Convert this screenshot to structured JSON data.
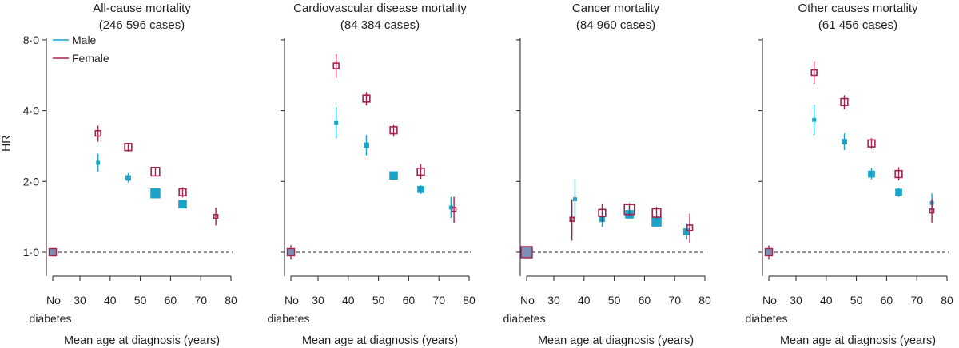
{
  "colors": {
    "male": "#1aa3c7",
    "female": "#a3224f",
    "axis": "#231f20"
  },
  "legend": {
    "male": "Male",
    "female": "Female"
  },
  "chart_data": [
    {
      "type": "scatter",
      "title": "All-cause mortality",
      "subtitle": "(246 596 cases)",
      "xlabel": "Mean age at diagnosis (years)",
      "ylabel": "HR",
      "yscale": "log2",
      "yticks": [
        1.0,
        2.0,
        4.0,
        8.0
      ],
      "ytick_labels": [
        "1·0",
        "2·0",
        "4·0",
        "8·0"
      ],
      "xticks": [
        30,
        40,
        50,
        60,
        70,
        80
      ],
      "no_diabetes_label": [
        "No",
        "diabetes"
      ],
      "reference_line": 1.0,
      "ref_point": {
        "hr": 1.0,
        "lo": 0.96,
        "hi": 1.04
      },
      "series": [
        {
          "name": "Male",
          "points": [
            {
              "age": 36,
              "hr": 2.4,
              "lo": 2.2,
              "hi": 2.62,
              "weight": 1
            },
            {
              "age": 46,
              "hr": 2.07,
              "lo": 1.98,
              "hi": 2.17,
              "weight": 2
            },
            {
              "age": 55,
              "hr": 1.78,
              "lo": 1.74,
              "hi": 1.82,
              "weight": 5
            },
            {
              "age": 64,
              "hr": 1.6,
              "lo": 1.57,
              "hi": 1.63,
              "weight": 4
            }
          ]
        },
        {
          "name": "Female",
          "points": [
            {
              "age": 36,
              "hr": 3.2,
              "lo": 2.95,
              "hi": 3.45,
              "weight": 2
            },
            {
              "age": 46,
              "hr": 2.8,
              "lo": 2.68,
              "hi": 2.92,
              "weight": 3
            },
            {
              "age": 55,
              "hr": 2.2,
              "lo": 2.12,
              "hi": 2.28,
              "weight": 4
            },
            {
              "age": 64,
              "hr": 1.8,
              "lo": 1.71,
              "hi": 1.89,
              "weight": 3
            },
            {
              "age": 75,
              "hr": 1.42,
              "lo": 1.3,
              "hi": 1.55,
              "weight": 1
            }
          ]
        }
      ]
    },
    {
      "type": "scatter",
      "title": "Cardiovascular disease mortality",
      "subtitle": "(84 384 cases)",
      "xlabel": "Mean age at diagnosis (years)",
      "ylabel": "HR",
      "yscale": "log2",
      "yticks": [
        1.0,
        2.0,
        4.0,
        8.0
      ],
      "ytick_labels": [
        "1·0",
        "2·0",
        "4·0",
        "8·0"
      ],
      "xticks": [
        30,
        40,
        50,
        60,
        70,
        80
      ],
      "no_diabetes_label": [
        "No",
        "diabetes"
      ],
      "reference_line": 1.0,
      "ref_point": {
        "hr": 1.0,
        "lo": 0.93,
        "hi": 1.07
      },
      "series": [
        {
          "name": "Male",
          "points": [
            {
              "age": 36,
              "hr": 3.55,
              "lo": 3.05,
              "hi": 4.15,
              "weight": 1
            },
            {
              "age": 46,
              "hr": 2.85,
              "lo": 2.58,
              "hi": 3.15,
              "weight": 2
            },
            {
              "age": 55,
              "hr": 2.12,
              "lo": 2.03,
              "hi": 2.21,
              "weight": 4
            },
            {
              "age": 64,
              "hr": 1.85,
              "lo": 1.77,
              "hi": 1.93,
              "weight": 3
            },
            {
              "age": 74,
              "hr": 1.55,
              "lo": 1.4,
              "hi": 1.72,
              "weight": 1
            }
          ]
        },
        {
          "name": "Female",
          "points": [
            {
              "age": 36,
              "hr": 6.2,
              "lo": 5.5,
              "hi": 6.95,
              "weight": 2
            },
            {
              "age": 46,
              "hr": 4.5,
              "lo": 4.2,
              "hi": 4.8,
              "weight": 3
            },
            {
              "age": 55,
              "hr": 3.3,
              "lo": 3.1,
              "hi": 3.5,
              "weight": 3
            },
            {
              "age": 64,
              "hr": 2.2,
              "lo": 2.05,
              "hi": 2.37,
              "weight": 3
            },
            {
              "age": 75,
              "hr": 1.52,
              "lo": 1.33,
              "hi": 1.72,
              "weight": 1
            }
          ]
        }
      ]
    },
    {
      "type": "scatter",
      "title": "Cancer mortality",
      "subtitle": "(84 960 cases)",
      "xlabel": "Mean age at diagnosis (years)",
      "ylabel": "HR",
      "yscale": "log2",
      "yticks": [
        1.0,
        2.0,
        4.0,
        8.0
      ],
      "ytick_labels": [
        "1·0",
        "2·0",
        "4·0",
        "8·0"
      ],
      "xticks": [
        30,
        40,
        50,
        60,
        70,
        80
      ],
      "no_diabetes_label": [
        "No",
        "diabetes"
      ],
      "reference_line": 1.0,
      "ref_point": {
        "hr": 1.0,
        "lo": 0.95,
        "hi": 1.05
      },
      "series": [
        {
          "name": "Male",
          "points": [
            {
              "age": 37,
              "hr": 1.68,
              "lo": 1.38,
              "hi": 2.05,
              "weight": 1
            },
            {
              "age": 46,
              "hr": 1.38,
              "lo": 1.28,
              "hi": 1.48,
              "weight": 2
            },
            {
              "age": 55,
              "hr": 1.45,
              "lo": 1.39,
              "hi": 1.52,
              "weight": 4
            },
            {
              "age": 64,
              "hr": 1.35,
              "lo": 1.3,
              "hi": 1.4,
              "weight": 5
            },
            {
              "age": 74,
              "hr": 1.22,
              "lo": 1.13,
              "hi": 1.32,
              "weight": 3
            }
          ]
        },
        {
          "name": "Female",
          "points": [
            {
              "age": 36,
              "hr": 1.38,
              "lo": 1.12,
              "hi": 1.68,
              "weight": 1
            },
            {
              "age": 46,
              "hr": 1.47,
              "lo": 1.35,
              "hi": 1.6,
              "weight": 3
            },
            {
              "age": 55,
              "hr": 1.52,
              "lo": 1.43,
              "hi": 1.62,
              "weight": 5
            },
            {
              "age": 64,
              "hr": 1.47,
              "lo": 1.39,
              "hi": 1.56,
              "weight": 4
            },
            {
              "age": 75,
              "hr": 1.27,
              "lo": 1.1,
              "hi": 1.46,
              "weight": 2
            }
          ]
        }
      ]
    },
    {
      "type": "scatter",
      "title": "Other causes mortality",
      "subtitle": "(61 456 cases)",
      "xlabel": "Mean age at diagnosis (years)",
      "ylabel": "HR",
      "yscale": "log2",
      "yticks": [
        1.0,
        2.0,
        4.0,
        8.0
      ],
      "ytick_labels": [
        "1·0",
        "2·0",
        "4·0",
        "8·0"
      ],
      "xticks": [
        30,
        40,
        50,
        60,
        70,
        80
      ],
      "no_diabetes_label": [
        "No",
        "diabetes"
      ],
      "reference_line": 1.0,
      "ref_point": {
        "hr": 1.0,
        "lo": 0.93,
        "hi": 1.07
      },
      "series": [
        {
          "name": "Male",
          "points": [
            {
              "age": 36,
              "hr": 3.65,
              "lo": 3.15,
              "hi": 4.25,
              "weight": 1
            },
            {
              "age": 46,
              "hr": 2.95,
              "lo": 2.72,
              "hi": 3.2,
              "weight": 2
            },
            {
              "age": 55,
              "hr": 2.15,
              "lo": 2.04,
              "hi": 2.27,
              "weight": 3
            },
            {
              "age": 64,
              "hr": 1.8,
              "lo": 1.72,
              "hi": 1.88,
              "weight": 3
            },
            {
              "age": 75,
              "hr": 1.62,
              "lo": 1.48,
              "hi": 1.78,
              "weight": 1
            }
          ]
        },
        {
          "name": "Female",
          "points": [
            {
              "age": 36,
              "hr": 5.8,
              "lo": 5.2,
              "hi": 6.45,
              "weight": 2
            },
            {
              "age": 46,
              "hr": 4.35,
              "lo": 4.05,
              "hi": 4.65,
              "weight": 3
            },
            {
              "age": 55,
              "hr": 2.9,
              "lo": 2.75,
              "hi": 3.05,
              "weight": 3
            },
            {
              "age": 64,
              "hr": 2.15,
              "lo": 2.02,
              "hi": 2.3,
              "weight": 3
            },
            {
              "age": 75,
              "hr": 1.5,
              "lo": 1.33,
              "hi": 1.68,
              "weight": 1
            }
          ]
        }
      ]
    }
  ]
}
